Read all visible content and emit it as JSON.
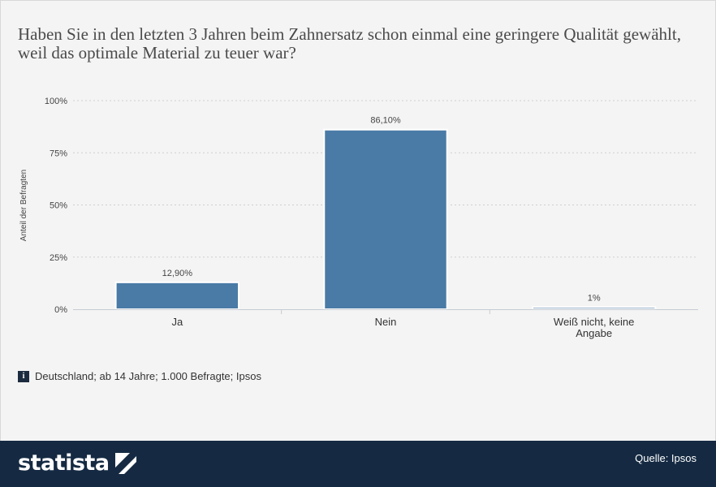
{
  "title": "Haben Sie in den letzten 3 Jahren beim Zahnersatz schon einmal eine geringere Qualität gewählt, weil das optimale Material zu teuer war?",
  "note": "Deutschland; ab 14 Jahre; 1.000 Befragte; Ipsos",
  "note_icon": "info-icon",
  "brand": "statista",
  "brand_icon": "statista-logo-icon",
  "source": "Quelle: Ipsos",
  "colors": {
    "bar": "#4a7ba6",
    "footer": "#152a42",
    "background": "#f4f4f4"
  },
  "chart_data": {
    "type": "bar",
    "categories": [
      "Ja",
      "Nein",
      "Weiß nicht, keine Angabe"
    ],
    "category_lines": [
      [
        "Ja"
      ],
      [
        "Nein"
      ],
      [
        "Weiß nicht, keine",
        "Angabe"
      ]
    ],
    "values": [
      12.9,
      86.1,
      1
    ],
    "data_labels": [
      "12,90%",
      "86,10%",
      "1%"
    ],
    "ylabel": "Anteil der Befragten",
    "ylim": [
      0,
      100
    ],
    "yticks": [
      0,
      25,
      50,
      75,
      100
    ],
    "ytick_labels": [
      "0%",
      "25%",
      "50%",
      "75%",
      "100%"
    ],
    "grid": true,
    "legend": "none"
  }
}
